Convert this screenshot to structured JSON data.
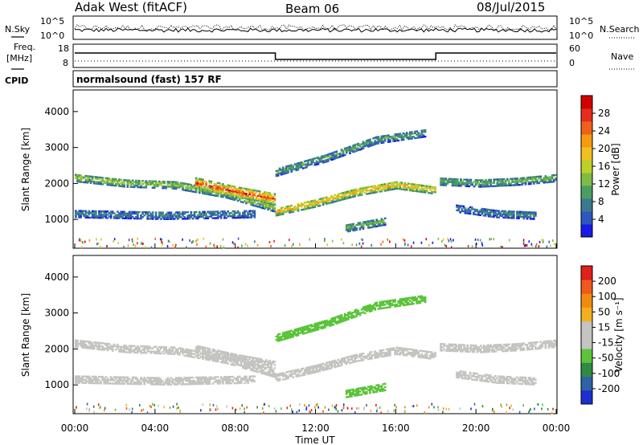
{
  "header": {
    "radar": "Adak West (fitACF)",
    "beam": "Beam 06",
    "date": "08/Jul/2015"
  },
  "noise_panel": {
    "left_label": "N.Sky",
    "left_ticks": [
      "10^5",
      "10^0"
    ],
    "right_ticks": [
      "10^5",
      "10^0"
    ],
    "right_label": "N.Search"
  },
  "freq_panel": {
    "left_label_1": "Freq.",
    "left_label_2": "[MHz]",
    "left_ticks": [
      "18",
      "8"
    ],
    "right_ticks": [
      "60",
      "0"
    ],
    "right_label": "Nave"
  },
  "cpid_panel": {
    "label": "CPID",
    "program": "normalsound (fast) 157 RF"
  },
  "time_axis": {
    "ticks": [
      "00:00",
      "04:00",
      "08:00",
      "12:00",
      "16:00",
      "20:00",
      "00:00"
    ],
    "label": "Time UT"
  },
  "colors": {
    "power_scale": [
      "#1a1ae6",
      "#2e57c0",
      "#3b7a8c",
      "#4b9e62",
      "#7dbd44",
      "#bfcf2a",
      "#f0c020",
      "#f59a12",
      "#f06018",
      "#e52d1d",
      "#d40000"
    ],
    "velocity_scale": [
      "#1f2fcf",
      "#2d62a8",
      "#2f8a44",
      "#5bc43a",
      "#c4c4c0",
      "#c4c4c0",
      "#f2b020",
      "#f28a12",
      "#f0581c",
      "#e0201a"
    ]
  },
  "chart_data": [
    {
      "type": "heatmap",
      "title": "",
      "quantity": "Power",
      "ylabel": "Slant Range [km]",
      "xlabel": "Time UT",
      "ylim": [
        200,
        4600
      ],
      "y_ticks": [
        "1000",
        "2000",
        "3000",
        "4000"
      ],
      "colorbar_label": "Power [dB]",
      "colorbar_ticks": [
        "28",
        "24",
        "20",
        "16",
        "12",
        "8",
        "4"
      ],
      "colorbar_range": [
        0,
        30
      ],
      "echo_bands": [
        {
          "t_start": 0,
          "t_end": 10,
          "range_center": [
            2150,
            2000,
            1950,
            1700,
            1300
          ],
          "value": 14
        },
        {
          "t_start": 6,
          "t_end": 10,
          "range_center": [
            2000,
            1750,
            1550
          ],
          "value": 26
        },
        {
          "t_start": 10,
          "t_end": 18,
          "range_center": [
            1200,
            1450,
            1750,
            1950,
            1800
          ],
          "value": 20
        },
        {
          "t_start": 18.2,
          "t_end": 24,
          "range_center": [
            2050,
            2000,
            2050,
            2150
          ],
          "value": 12
        },
        {
          "t_start": 0,
          "t_end": 9,
          "range_center": [
            1150,
            1100,
            1150
          ],
          "value": 8
        },
        {
          "t_start": 10,
          "t_end": 17.5,
          "range_center": [
            2300,
            2700,
            3200,
            3400
          ],
          "value": 10
        },
        {
          "t_start": 13.5,
          "t_end": 15.5,
          "range_center": [
            750,
            850,
            950
          ],
          "value": 12
        },
        {
          "t_start": 19,
          "t_end": 23,
          "range_center": [
            1300,
            1150,
            1100
          ],
          "value": 8
        }
      ]
    },
    {
      "type": "heatmap",
      "title": "",
      "quantity": "Velocity",
      "ylabel": "Slant Range [km]",
      "xlabel": "Time UT",
      "ylim": [
        200,
        4600
      ],
      "y_ticks": [
        "1000",
        "2000",
        "3000",
        "4000"
      ],
      "colorbar_label": "Velocity [m s⁻¹]",
      "colorbar_ticks": [
        "200",
        "100",
        "50",
        "15",
        "-15",
        "-50",
        "-100",
        "-200"
      ],
      "colorbar_range": [
        -250,
        250
      ],
      "echo_bands": [
        {
          "t_start": 0,
          "t_end": 10,
          "range_center": [
            2150,
            2000,
            1950,
            1700,
            1300
          ],
          "value": 0
        },
        {
          "t_start": 6,
          "t_end": 10,
          "range_center": [
            2000,
            1750,
            1550
          ],
          "value": 0
        },
        {
          "t_start": 10,
          "t_end": 18,
          "range_center": [
            1200,
            1450,
            1750,
            1950,
            1800
          ],
          "value": 0
        },
        {
          "t_start": 18.2,
          "t_end": 24,
          "range_center": [
            2050,
            2000,
            2050,
            2150
          ],
          "value": 0
        },
        {
          "t_start": 0,
          "t_end": 9,
          "range_center": [
            1150,
            1100,
            1150
          ],
          "value": 0
        },
        {
          "t_start": 10,
          "t_end": 17.5,
          "range_center": [
            2300,
            2700,
            3200,
            3400
          ],
          "value": -60
        },
        {
          "t_start": 13.5,
          "t_end": 15.5,
          "range_center": [
            750,
            850,
            950
          ],
          "value": -60
        },
        {
          "t_start": 19,
          "t_end": 23,
          "range_center": [
            1300,
            1150,
            1100
          ],
          "value": 0
        }
      ]
    }
  ]
}
